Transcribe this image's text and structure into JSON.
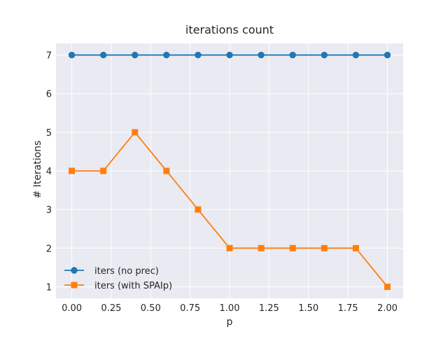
{
  "chart_data": {
    "type": "line",
    "title": "iterations count",
    "xlabel": "p",
    "ylabel": "# Iterations",
    "x": [
      0.0,
      0.2,
      0.4,
      0.6,
      0.8,
      1.0,
      1.2,
      1.4,
      1.6,
      1.8,
      2.0
    ],
    "series": [
      {
        "name": "iters (no prec)",
        "values": [
          7,
          7,
          7,
          7,
          7,
          7,
          7,
          7,
          7,
          7,
          7
        ],
        "color": "#1f77b4",
        "marker": "circle"
      },
      {
        "name": "iters (with SPAIp)",
        "values": [
          4,
          4,
          5,
          4,
          3,
          2,
          2,
          2,
          2,
          2,
          1
        ],
        "color": "#ff7f0e",
        "marker": "square"
      }
    ],
    "xlim": [
      -0.1,
      2.1
    ],
    "ylim": [
      0.7,
      7.3
    ],
    "xticks": [
      "0.00",
      "0.25",
      "0.50",
      "0.75",
      "1.00",
      "1.25",
      "1.50",
      "1.75",
      "2.00"
    ],
    "yticks": [
      "1",
      "2",
      "3",
      "4",
      "5",
      "6",
      "7"
    ],
    "grid": true,
    "legend_position": "lower-left",
    "background_color": "#eaeaf2",
    "grid_color": "#ffffff"
  }
}
